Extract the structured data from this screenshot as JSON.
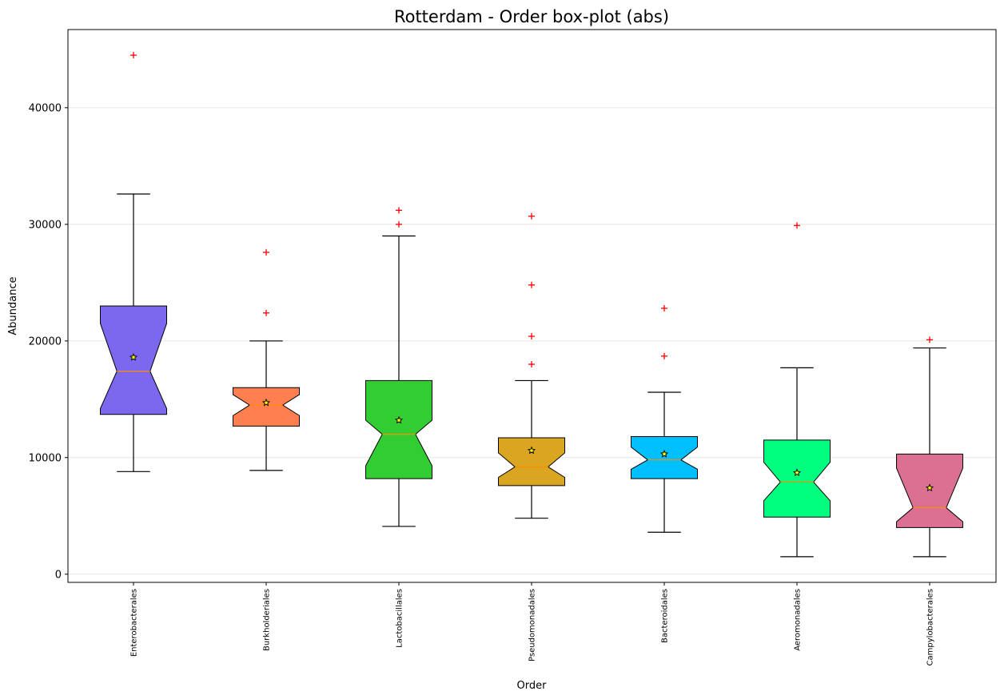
{
  "chart_data": {
    "type": "box",
    "title": "Rotterdam - Order box-plot (abs)",
    "xlabel": "Order",
    "ylabel": "Abundance",
    "ylim": [
      -700,
      46700
    ],
    "yticks": [
      0,
      10000,
      20000,
      30000,
      40000
    ],
    "grid": "horizontal",
    "colors": {
      "outlier": "#ff0000",
      "median": "#ff8c00",
      "grid": "#e6e6e6",
      "mean_marker_fill": "#ffff00"
    },
    "boxes": [
      {
        "name": "Enterobacterales",
        "color": "#7b68ee",
        "whisker_low": 8800,
        "q1": 13700,
        "median": 17400,
        "q3": 23000,
        "whisker_high": 32600,
        "notch_low": 14200,
        "notch_high": 21500,
        "mean": 18600,
        "outliers": [
          44500
        ]
      },
      {
        "name": "Burkholderiales",
        "color": "#ff7f50",
        "whisker_low": 8900,
        "q1": 12700,
        "median": 14500,
        "q3": 16000,
        "whisker_high": 20000,
        "notch_low": 13600,
        "notch_high": 15400,
        "mean": 14700,
        "outliers": [
          22400,
          27600
        ]
      },
      {
        "name": "Lactobacillales",
        "color": "#32cd32",
        "whisker_low": 4100,
        "q1": 8200,
        "median": 12000,
        "q3": 16600,
        "whisker_high": 29000,
        "notch_low": 9300,
        "notch_high": 13200,
        "mean": 13200,
        "outliers": [
          30000,
          31200
        ]
      },
      {
        "name": "Pseudomonadales",
        "color": "#daa520",
        "whisker_low": 4800,
        "q1": 7600,
        "median": 9200,
        "q3": 11700,
        "whisker_high": 16600,
        "notch_low": 8300,
        "notch_high": 10400,
        "mean": 10600,
        "outliers": [
          18000,
          20400,
          24800,
          30700
        ]
      },
      {
        "name": "Bacteroidales",
        "color": "#00bfff",
        "whisker_low": 3600,
        "q1": 8200,
        "median": 9800,
        "q3": 11800,
        "whisker_high": 15600,
        "notch_low": 9000,
        "notch_high": 10900,
        "mean": 10300,
        "outliers": [
          18700,
          22800
        ]
      },
      {
        "name": "Aeromonadales",
        "color": "#00ff7f",
        "whisker_low": 1500,
        "q1": 4900,
        "median": 7900,
        "q3": 11500,
        "whisker_high": 17700,
        "notch_low": 6300,
        "notch_high": 9600,
        "mean": 8700,
        "outliers": [
          29900
        ]
      },
      {
        "name": "Campylobacterales",
        "color": "#db7093",
        "whisker_low": 1500,
        "q1": 4000,
        "median": 5700,
        "q3": 10300,
        "whisker_high": 19400,
        "notch_low": 4500,
        "notch_high": 9100,
        "mean": 7400,
        "outliers": [
          20100
        ]
      }
    ]
  }
}
